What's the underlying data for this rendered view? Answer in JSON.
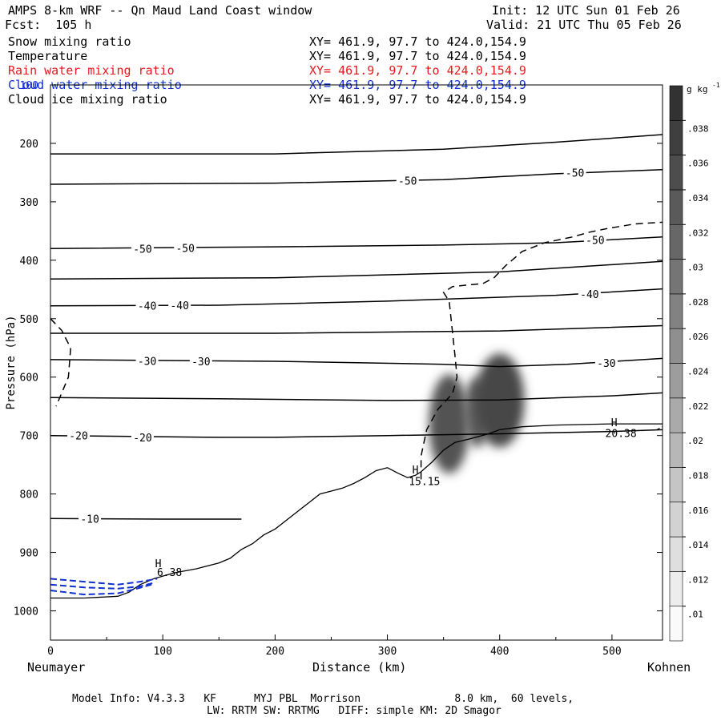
{
  "header": {
    "title": "AMPS 8-km WRF -- Qn Maud Land Coast window",
    "fcst": "Fcst:  105 h",
    "init": "Init: 12 UTC Sun 01 Feb 26",
    "valid": "Valid: 21 UTC Thu 05 Feb 26"
  },
  "fields": [
    {
      "name": "Snow mixing ratio",
      "xy": "XY= 461.9, 97.7 to 424.0,154.9",
      "color": "#000000"
    },
    {
      "name": "Temperature",
      "xy": "XY= 461.9, 97.7 to 424.0,154.9",
      "color": "#000000"
    },
    {
      "name": "Rain water mixing ratio",
      "xy": "XY= 461.9, 97.7 to 424.0,154.9",
      "color": "#e8191e"
    },
    {
      "name": "Cloud water mixing ratio",
      "xy": "XY= 461.9, 97.7 to 424.0,154.9",
      "color": "#1030d0"
    },
    {
      "name": "Cloud ice mixing ratio",
      "xy": "XY= 461.9, 97.7 to 424.0,154.9",
      "color": "#000000"
    }
  ],
  "footer": {
    "model_line": "Model Info: V4.3.3   KF      MYJ PBL  Morrison               8.0 km,  60 levels,",
    "physics_line": "LW: RRTM SW: RRTMG   DIFF: simple KM: 2D Smagor"
  },
  "chart_data": {
    "type": "cross-section",
    "xlabel": "Distance (km)",
    "ylabel": "Pressure (hPa)",
    "xlim": [
      0,
      545
    ],
    "ylim": [
      1050,
      100
    ],
    "xticks": [
      0,
      100,
      200,
      300,
      400,
      500
    ],
    "yticks": [
      200,
      300,
      400,
      500,
      600,
      700,
      800,
      900,
      1000
    ],
    "left_end_label": "Neumayer",
    "right_end_label": "Kohnen",
    "colorbar": {
      "unit": "g kg",
      "unit_exp": "-1",
      "ticks": [
        ".01",
        ".012",
        ".014",
        ".016",
        ".018",
        ".02",
        ".022",
        ".024",
        ".026",
        ".028",
        ".03",
        ".032",
        ".034",
        ".036",
        ".038"
      ],
      "min": 0.009,
      "max": 0.04
    },
    "terrain": [
      [
        0,
        978
      ],
      [
        30,
        978
      ],
      [
        60,
        975
      ],
      [
        70,
        968
      ],
      [
        80,
        955
      ],
      [
        92,
        945
      ],
      [
        110,
        935
      ],
      [
        130,
        928
      ],
      [
        150,
        918
      ],
      [
        160,
        910
      ],
      [
        170,
        895
      ],
      [
        180,
        885
      ],
      [
        190,
        870
      ],
      [
        200,
        860
      ],
      [
        210,
        845
      ],
      [
        220,
        830
      ],
      [
        230,
        815
      ],
      [
        240,
        800
      ],
      [
        250,
        795
      ],
      [
        260,
        790
      ],
      [
        270,
        782
      ],
      [
        280,
        772
      ],
      [
        290,
        760
      ],
      [
        300,
        755
      ],
      [
        310,
        765
      ],
      [
        318,
        772
      ],
      [
        325,
        768
      ],
      [
        330,
        762
      ],
      [
        340,
        745
      ],
      [
        350,
        725
      ],
      [
        360,
        712
      ],
      [
        375,
        705
      ],
      [
        390,
        697
      ],
      [
        400,
        690
      ],
      [
        420,
        685
      ],
      [
        450,
        682
      ],
      [
        500,
        680
      ],
      [
        545,
        680
      ]
    ],
    "isotherms": [
      {
        "label": "-10",
        "points": [
          [
            0,
            842
          ],
          [
            100,
            843
          ],
          [
            170,
            843
          ]
        ],
        "label_positions": [
          [
            35,
            842
          ]
        ]
      },
      {
        "label": "-20",
        "points": [
          [
            0,
            700
          ],
          [
            150,
            703
          ],
          [
            200,
            703
          ],
          [
            300,
            700
          ],
          [
            400,
            697
          ],
          [
            500,
            693
          ],
          [
            545,
            690
          ]
        ],
        "label_positions": [
          [
            25,
            700
          ],
          [
            82,
            703
          ]
        ]
      },
      {
        "label": "",
        "points": [
          [
            0,
            635
          ],
          [
            150,
            637
          ],
          [
            300,
            640
          ],
          [
            400,
            639
          ],
          [
            500,
            632
          ],
          [
            545,
            627
          ]
        ],
        "label_positions": []
      },
      {
        "label": "-30",
        "points": [
          [
            0,
            570
          ],
          [
            200,
            573
          ],
          [
            350,
            578
          ],
          [
            400,
            582
          ],
          [
            460,
            578
          ],
          [
            545,
            568
          ]
        ],
        "label_positions": [
          [
            86,
            572
          ],
          [
            134,
            573
          ],
          [
            495,
            576
          ]
        ]
      },
      {
        "label": "",
        "points": [
          [
            0,
            525
          ],
          [
            200,
            525
          ],
          [
            400,
            521
          ],
          [
            545,
            512
          ]
        ],
        "label_positions": []
      },
      {
        "label": "-40",
        "points": [
          [
            0,
            478
          ],
          [
            150,
            477
          ],
          [
            300,
            470
          ],
          [
            450,
            460
          ],
          [
            545,
            449
          ]
        ],
        "label_positions": [
          [
            86,
            478
          ],
          [
            115,
            477
          ],
          [
            480,
            458
          ]
        ]
      },
      {
        "label": "",
        "points": [
          [
            0,
            432
          ],
          [
            200,
            430
          ],
          [
            400,
            420
          ],
          [
            545,
            402
          ]
        ],
        "label_positions": []
      },
      {
        "label": "-50",
        "points": [
          [
            0,
            380
          ],
          [
            200,
            377
          ],
          [
            350,
            374
          ],
          [
            450,
            370
          ],
          [
            545,
            360
          ]
        ],
        "label_positions": [
          [
            82,
            380
          ],
          [
            120,
            379
          ],
          [
            485,
            365
          ]
        ]
      },
      {
        "label": "-50",
        "points": [
          [
            0,
            270
          ],
          [
            200,
            268
          ],
          [
            350,
            262
          ],
          [
            450,
            252
          ],
          [
            545,
            245
          ]
        ],
        "label_positions": [
          [
            318,
            264
          ],
          [
            467,
            250
          ]
        ]
      },
      {
        "label": "",
        "points": [
          [
            0,
            218
          ],
          [
            200,
            218
          ],
          [
            350,
            210
          ],
          [
            450,
            198
          ],
          [
            545,
            185
          ]
        ],
        "label_positions": []
      }
    ],
    "isotherm_highs": [
      {
        "x": 96,
        "p": 925,
        "label": "6.38",
        "label_x": 106,
        "label_p": 935,
        "text": "H"
      },
      {
        "x": 325,
        "p": 765,
        "label": "15.15",
        "label_x": 333,
        "label_p": 779,
        "text": "H"
      },
      {
        "x": 502,
        "p": 684,
        "label": "20.38",
        "label_x": 508,
        "label_p": 697,
        "text": "H"
      }
    ],
    "snow_cells": [
      {
        "x": 355,
        "p": 680,
        "rx": 18,
        "rp": 85,
        "value": 0.034
      },
      {
        "x": 380,
        "p": 660,
        "rx": 12,
        "rp": 60,
        "value": 0.032
      },
      {
        "x": 400,
        "p": 640,
        "rx": 22,
        "rp": 80,
        "value": 0.036
      }
    ],
    "cloud_ice_contour": [
      [
        330,
        775
      ],
      [
        330,
        735
      ],
      [
        335,
        690
      ],
      [
        345,
        655
      ],
      [
        358,
        628
      ],
      [
        362,
        600
      ],
      [
        360,
        560
      ],
      [
        355,
        470
      ],
      [
        350,
        455
      ],
      [
        358,
        445
      ],
      [
        368,
        443
      ],
      [
        385,
        440
      ],
      [
        395,
        430
      ],
      [
        405,
        410
      ],
      [
        420,
        385
      ],
      [
        440,
        370
      ],
      [
        465,
        360
      ],
      [
        480,
        352
      ],
      [
        495,
        346
      ],
      [
        520,
        338
      ],
      [
        545,
        335
      ]
    ],
    "cloud_ice_left": [
      [
        0,
        500
      ],
      [
        10,
        520
      ],
      [
        18,
        550
      ],
      [
        16,
        600
      ],
      [
        5,
        650
      ]
    ],
    "cloud_water": [
      [
        [
          0,
          945
        ],
        [
          30,
          950
        ],
        [
          60,
          955
        ],
        [
          80,
          950
        ],
        [
          95,
          945
        ]
      ],
      [
        [
          0,
          955
        ],
        [
          30,
          960
        ],
        [
          60,
          962
        ],
        [
          80,
          958
        ],
        [
          92,
          952
        ]
      ],
      [
        [
          0,
          965
        ],
        [
          30,
          972
        ],
        [
          60,
          970
        ],
        [
          75,
          963
        ],
        [
          90,
          955
        ]
      ]
    ],
    "cloud_water_right": [
      [
        540,
        690
      ],
      [
        545,
        685
      ]
    ]
  }
}
